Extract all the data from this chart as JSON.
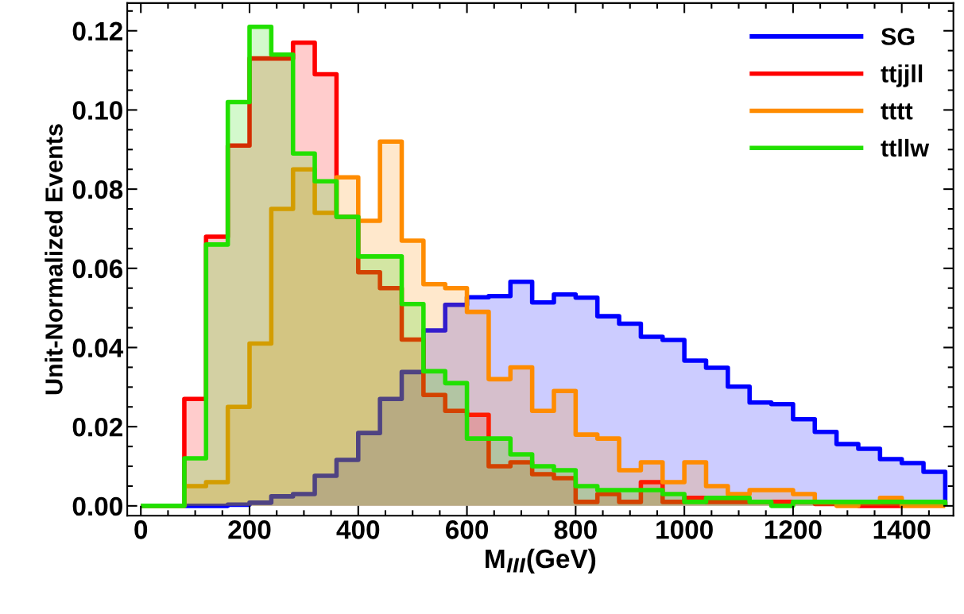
{
  "chart_data": {
    "type": "histogram",
    "xlabel": "M$_{lll}$(GeV)",
    "ylabel": "Unit-Normalized Events",
    "bins": [
      0,
      40,
      80,
      120,
      160,
      200,
      240,
      280,
      320,
      360,
      400,
      440,
      480,
      520,
      560,
      600,
      640,
      680,
      720,
      760,
      800,
      840,
      880,
      920,
      960,
      1000,
      1040,
      1080,
      1120,
      1160,
      1200,
      1240,
      1280,
      1320,
      1360,
      1400,
      1440,
      1480
    ],
    "series": [
      {
        "name": "SG",
        "color": "#0000ff",
        "values": [
          0,
          0,
          0,
          0,
          0.0003,
          0.0008,
          0.0024,
          0.003,
          0.0076,
          0.0116,
          0.0184,
          0.027,
          0.0338,
          0.0443,
          0.0508,
          0.0527,
          0.053,
          0.0566,
          0.0514,
          0.0534,
          0.0526,
          0.0479,
          0.046,
          0.0427,
          0.0419,
          0.0367,
          0.0349,
          0.0301,
          0.0261,
          0.0257,
          0.0219,
          0.0187,
          0.0156,
          0.0144,
          0.0118,
          0.0108,
          0.0086
        ]
      },
      {
        "name": "ttjjll",
        "color": "#ff0000",
        "values": [
          0,
          0,
          0.027,
          0.068,
          0.091,
          0.113,
          0.113,
          0.117,
          0.109,
          0.073,
          0.059,
          0.055,
          0.042,
          0.028,
          0.024,
          0.023,
          0.01,
          0.011,
          0.008,
          0.007,
          0.001,
          0.003,
          0.001,
          0.006,
          0.001,
          0.002,
          0.001,
          0.001,
          0.001,
          0.001,
          0.001,
          0.0005,
          0.0005,
          0,
          0,
          0.001,
          0.001
        ]
      },
      {
        "name": "tttt",
        "color": "#ff8c00",
        "values": [
          0,
          0,
          0.005,
          0.006,
          0.025,
          0.041,
          0.075,
          0.085,
          0.074,
          0.083,
          0.072,
          0.092,
          0.067,
          0.056,
          0.055,
          0.049,
          0.032,
          0.035,
          0.024,
          0.029,
          0.018,
          0.017,
          0.009,
          0.011,
          0.006,
          0.011,
          0.005,
          0.003,
          0.004,
          0.004,
          0.003,
          0.001,
          0,
          0.001,
          0.002,
          0,
          0
        ]
      },
      {
        "name": "ttllw",
        "color": "#22e000",
        "values": [
          0,
          0,
          0.012,
          0.066,
          0.102,
          0.121,
          0.114,
          0.089,
          0.082,
          0.073,
          0.063,
          0.063,
          0.051,
          0.034,
          0.031,
          0.017,
          0.017,
          0.013,
          0.01,
          0.009,
          0.005,
          0.004,
          0.004,
          0.004,
          0.003,
          0.001,
          0.002,
          0.002,
          0.001,
          0,
          0.001,
          0.001,
          0.001,
          0.001,
          0.001,
          0.001,
          0.001
        ]
      }
    ],
    "xlim": [
      -25,
      1495
    ],
    "ylim": [
      -0.0025,
      0.127
    ],
    "xticks": [
      0,
      200,
      400,
      600,
      800,
      1000,
      1200,
      1400
    ],
    "yticks": [
      {
        "value": 0,
        "label": "0.00"
      },
      {
        "value": 0.02,
        "label": "0.02"
      },
      {
        "value": 0.04,
        "label": "0.04"
      },
      {
        "value": 0.06,
        "label": "0.06"
      },
      {
        "value": 0.08,
        "label": "0.08"
      },
      {
        "value": 0.1,
        "label": "0.10"
      },
      {
        "value": 0.12,
        "label": "0.12"
      }
    ],
    "legend": "top right",
    "grid": false
  }
}
